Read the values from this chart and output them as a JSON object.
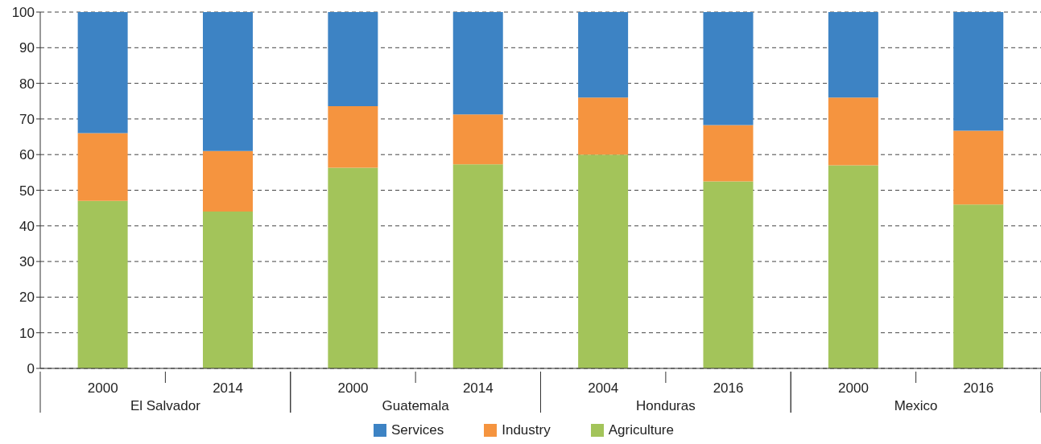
{
  "chart_data": {
    "type": "bar",
    "stacked": true,
    "categories": [
      "2000",
      "2014",
      "2000",
      "2014",
      "2004",
      "2016",
      "2000",
      "2016"
    ],
    "annotations": [
      "El Salvador",
      "Guatemala",
      "Honduras",
      "Mexico"
    ],
    "series": [
      {
        "name": "Agriculture",
        "color": "#a3c45a",
        "values": [
          47,
          44,
          56.3,
          57.3,
          60,
          52.5,
          57,
          46
        ]
      },
      {
        "name": "Industry",
        "color": "#f5943f",
        "values": [
          19,
          17,
          17.3,
          14,
          16,
          15.8,
          19,
          20.7
        ]
      },
      {
        "name": "Services",
        "color": "#3d83c4",
        "values": [
          34,
          39,
          26.4,
          28.7,
          24,
          31.7,
          24,
          33.3
        ]
      }
    ],
    "ylim": [
      0,
      100
    ],
    "yticks": [
      0,
      10,
      20,
      30,
      40,
      50,
      60,
      70,
      80,
      90,
      100
    ],
    "grid": "y",
    "legend": "bottom"
  }
}
